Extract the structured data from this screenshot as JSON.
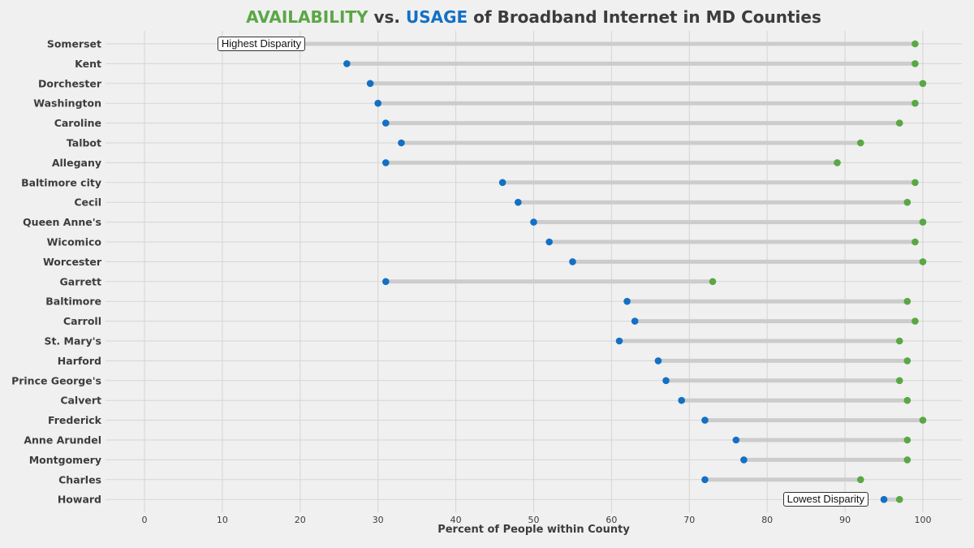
{
  "chart_data": {
    "type": "dot_range",
    "title": {
      "part1": "AVAILABILITY",
      "part2": " vs. ",
      "part3": "USAGE",
      "part4": " of Broadband Internet in MD Counties"
    },
    "xlabel": "Percent of People within County",
    "xlim": [
      -5,
      105
    ],
    "xticks": [
      0,
      10,
      20,
      30,
      40,
      50,
      60,
      70,
      80,
      90,
      100
    ],
    "grid": true,
    "colors": {
      "availability": "#5aa745",
      "usage": "#1370c4",
      "connector": "#cccccc",
      "grid": "#d5d5d5"
    },
    "counties": [
      "Somerset",
      "Kent",
      "Dorchester",
      "Washington",
      "Caroline",
      "Talbot",
      "Allegany",
      "Baltimore city",
      "Cecil",
      "Queen Anne's",
      "Wicomico",
      "Worcester",
      "Garrett",
      "Baltimore",
      "Carroll",
      "St. Mary's",
      "Harford",
      "Prince George's",
      "Calvert",
      "Frederick",
      "Anne Arundel",
      "Montgomery",
      "Charles",
      "Howard"
    ],
    "usage": [
      18,
      26,
      29,
      30,
      31,
      33,
      31,
      46,
      48,
      50,
      52,
      55,
      31,
      62,
      63,
      61,
      66,
      67,
      69,
      72,
      76,
      77,
      72,
      95
    ],
    "availability": [
      99,
      99,
      100,
      99,
      97,
      92,
      89,
      99,
      98,
      100,
      99,
      100,
      73,
      98,
      99,
      97,
      98,
      97,
      98,
      100,
      98,
      98,
      92,
      97
    ],
    "annotations": [
      {
        "text": "Highest Disparity",
        "county": "Somerset",
        "x": 15
      },
      {
        "text": "Lowest Disparity",
        "county": "Howard",
        "x": 87.5
      }
    ]
  }
}
